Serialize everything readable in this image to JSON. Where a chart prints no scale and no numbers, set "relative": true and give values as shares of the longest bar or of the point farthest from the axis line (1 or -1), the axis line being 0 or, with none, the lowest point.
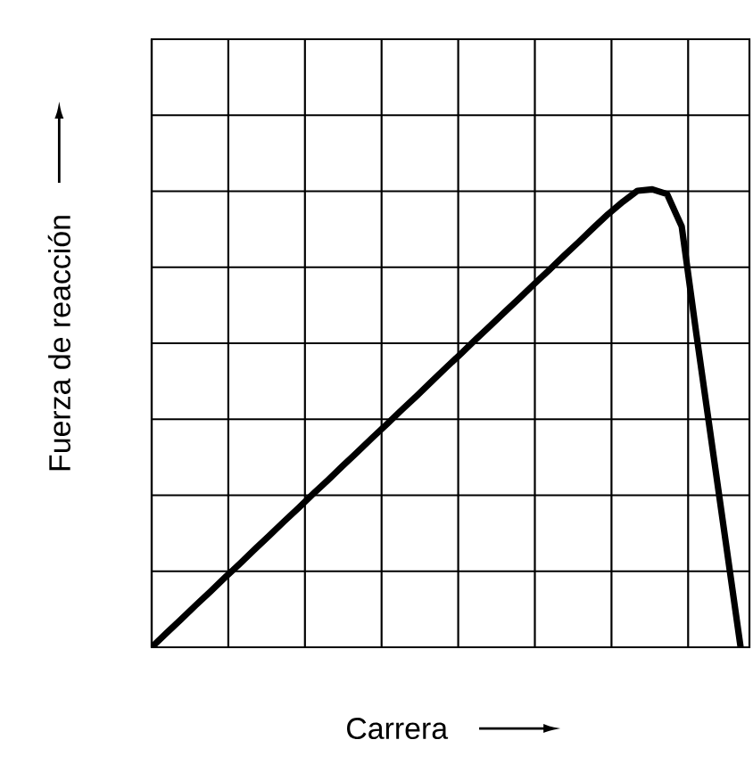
{
  "chart_data": {
    "type": "line",
    "relative": true,
    "xlabel": "Carrera",
    "ylabel": "Fuerza de reacción",
    "categories": [
      null,
      null,
      null,
      null,
      null,
      null,
      null,
      null,
      null,
      null,
      null,
      null,
      null,
      null,
      null,
      null,
      null,
      null,
      null,
      null,
      null,
      null,
      null,
      null,
      null,
      null,
      null,
      null,
      null,
      null,
      null,
      null,
      null,
      null,
      null,
      null,
      null,
      null,
      null,
      null,
      null
    ],
    "values": [
      0,
      0.031,
      0.061,
      0.092,
      0.122,
      0.153,
      0.183,
      0.214,
      0.244,
      0.275,
      0.305,
      0.336,
      0.366,
      0.397,
      0.427,
      0.458,
      0.488,
      0.519,
      0.549,
      0.58,
      0.611,
      0.641,
      0.672,
      0.702,
      0.733,
      0.763,
      0.794,
      0.824,
      0.855,
      0.885,
      0.916,
      0.946,
      0.973,
      0.997,
      1,
      0.99,
      0.919,
      0.683,
      0.455,
      0.228,
      0
    ],
    "color": "#000000",
    "grid": true,
    "tick_labels": false,
    "marker": "none",
    "line_style": "solid"
  }
}
